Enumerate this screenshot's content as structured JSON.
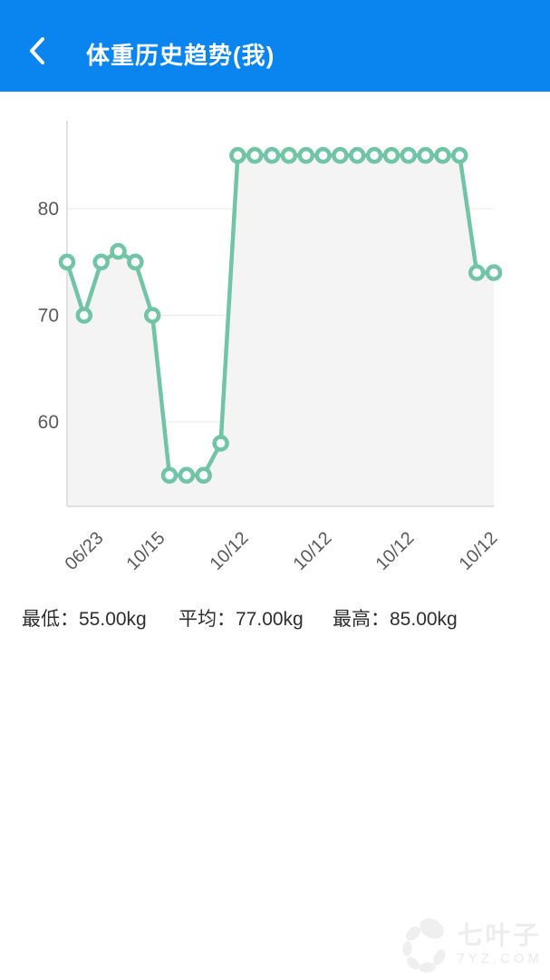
{
  "header": {
    "title": "体重历史趋势(我)",
    "back_icon": "chevron-left"
  },
  "status_bar": {
    "icons": [
      "signal-icon",
      "wifi-icon",
      "battery-icon"
    ]
  },
  "chart_data": {
    "type": "line",
    "title": "",
    "xlabel": "",
    "ylabel": "",
    "x_tick_labels": [
      "06/23",
      "10/15",
      "10/12",
      "10/12",
      "10/12",
      "10/12"
    ],
    "values": [
      75,
      70,
      75,
      76,
      75,
      70,
      55,
      55,
      55,
      58,
      85,
      85,
      85,
      85,
      85,
      85,
      85,
      85,
      85,
      85,
      85,
      85,
      85,
      85,
      74,
      74
    ],
    "y_ticks": [
      60,
      70,
      80
    ],
    "ylim": [
      52,
      88.5
    ],
    "grid": "horizontal",
    "legend": "none",
    "marker": "open-circle",
    "line_color": "#71c4a5",
    "area_color": "#f4f4f5",
    "axis_color": "#dadada",
    "tick_label_color": "#5a5a5a"
  },
  "summary": {
    "min": {
      "label": "最低：",
      "value": "55.00kg"
    },
    "avg": {
      "label": "平均：",
      "value": "77.00kg"
    },
    "max": {
      "label": "最高：",
      "value": "85.00kg"
    }
  },
  "watermark": {
    "name": "七叶子",
    "domain": "7YZ.COM"
  },
  "colors": {
    "header_background": "#0a85f0",
    "accent": "#71c4a5"
  }
}
